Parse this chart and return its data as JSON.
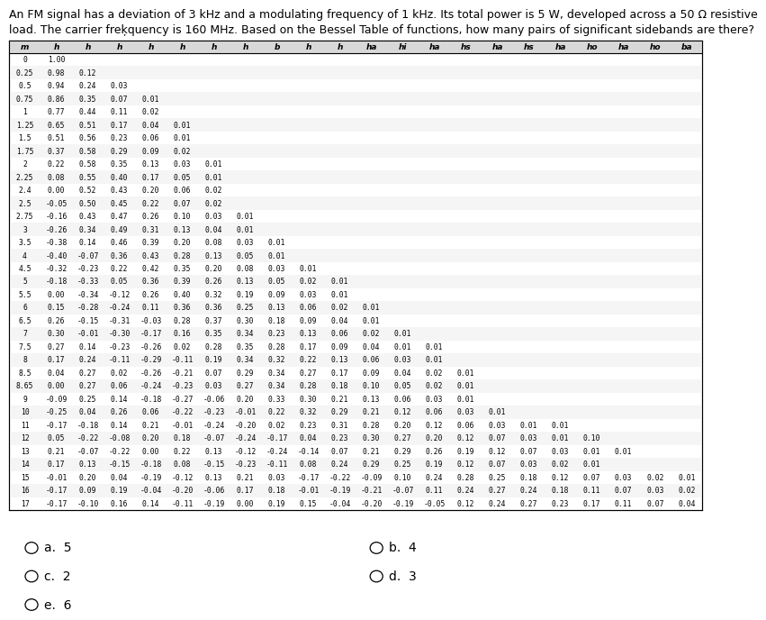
{
  "question_line1": "An FM signal has a deviation of 3 kHz and a modulating frequency of 1 kHz. Its total power is 5 W, developed across a 50 Ω resistive",
  "question_line2": "load. The carrier freķquency is 160 MHz. Based on the Bessel Table of functions, how many pairs of significant sidebands are there?",
  "col_headers": [
    "m",
    "h",
    "h",
    "h",
    "h",
    "h",
    "h",
    "h",
    "b",
    "h",
    "h",
    "ha",
    "hi",
    "ha",
    "hs",
    "ha",
    "hs",
    "ha",
    "ho",
    "ha",
    "ho",
    "ba"
  ],
  "rows": [
    [
      "0",
      "1.00"
    ],
    [
      "0.25",
      "0.98",
      "0.12"
    ],
    [
      "0.5",
      "0.94",
      "0.24",
      "0.03"
    ],
    [
      "0.75",
      "0.86",
      "0.35",
      "0.07",
      "0.01"
    ],
    [
      "1",
      "0.77",
      "0.44",
      "0.11",
      "0.02"
    ],
    [
      "1.25",
      "0.65",
      "0.51",
      "0.17",
      "0.04",
      "0.01"
    ],
    [
      "1.5",
      "0.51",
      "0.56",
      "0.23",
      "0.06",
      "0.01"
    ],
    [
      "1.75",
      "0.37",
      "0.58",
      "0.29",
      "0.09",
      "0.02"
    ],
    [
      "2",
      "0.22",
      "0.58",
      "0.35",
      "0.13",
      "0.03",
      "0.01"
    ],
    [
      "2.25",
      "0.08",
      "0.55",
      "0.40",
      "0.17",
      "0.05",
      "0.01"
    ],
    [
      "2.4",
      "0.00",
      "0.52",
      "0.43",
      "0.20",
      "0.06",
      "0.02"
    ],
    [
      "2.5",
      "-0.05",
      "0.50",
      "0.45",
      "0.22",
      "0.07",
      "0.02"
    ],
    [
      "2.75",
      "-0.16",
      "0.43",
      "0.47",
      "0.26",
      "0.10",
      "0.03",
      "0.01"
    ],
    [
      "3",
      "-0.26",
      "0.34",
      "0.49",
      "0.31",
      "0.13",
      "0.04",
      "0.01"
    ],
    [
      "3.5",
      "-0.38",
      "0.14",
      "0.46",
      "0.39",
      "0.20",
      "0.08",
      "0.03",
      "0.01"
    ],
    [
      "4",
      "-0.40",
      "-0.07",
      "0.36",
      "0.43",
      "0.28",
      "0.13",
      "0.05",
      "0.01"
    ],
    [
      "4.5",
      "-0.32",
      "-0.23",
      "0.22",
      "0.42",
      "0.35",
      "0.20",
      "0.08",
      "0.03",
      "0.01"
    ],
    [
      "5",
      "-0.18",
      "-0.33",
      "0.05",
      "0.36",
      "0.39",
      "0.26",
      "0.13",
      "0.05",
      "0.02",
      "0.01"
    ],
    [
      "5.5",
      "0.00",
      "-0.34",
      "-0.12",
      "0.26",
      "0.40",
      "0.32",
      "0.19",
      "0.09",
      "0.03",
      "0.01"
    ],
    [
      "6",
      "0.15",
      "-0.28",
      "-0.24",
      "0.11",
      "0.36",
      "0.36",
      "0.25",
      "0.13",
      "0.06",
      "0.02",
      "0.01"
    ],
    [
      "6.5",
      "0.26",
      "-0.15",
      "-0.31",
      "-0.03",
      "0.28",
      "0.37",
      "0.30",
      "0.18",
      "0.09",
      "0.04",
      "0.01"
    ],
    [
      "7",
      "0.30",
      "-0.01",
      "-0.30",
      "-0.17",
      "0.16",
      "0.35",
      "0.34",
      "0.23",
      "0.13",
      "0.06",
      "0.02",
      "0.01"
    ],
    [
      "7.5",
      "0.27",
      "0.14",
      "-0.23",
      "-0.26",
      "0.02",
      "0.28",
      "0.35",
      "0.28",
      "0.17",
      "0.09",
      "0.04",
      "0.01",
      "0.01"
    ],
    [
      "8",
      "0.17",
      "0.24",
      "-0.11",
      "-0.29",
      "-0.11",
      "0.19",
      "0.34",
      "0.32",
      "0.22",
      "0.13",
      "0.06",
      "0.03",
      "0.01"
    ],
    [
      "8.5",
      "0.04",
      "0.27",
      "0.02",
      "-0.26",
      "-0.21",
      "0.07",
      "0.29",
      "0.34",
      "0.27",
      "0.17",
      "0.09",
      "0.04",
      "0.02",
      "0.01"
    ],
    [
      "8.65",
      "0.00",
      "0.27",
      "0.06",
      "-0.24",
      "-0.23",
      "0.03",
      "0.27",
      "0.34",
      "0.28",
      "0.18",
      "0.10",
      "0.05",
      "0.02",
      "0.01"
    ],
    [
      "9",
      "-0.09",
      "0.25",
      "0.14",
      "-0.18",
      "-0.27",
      "-0.06",
      "0.20",
      "0.33",
      "0.30",
      "0.21",
      "0.13",
      "0.06",
      "0.03",
      "0.01"
    ],
    [
      "10",
      "-0.25",
      "0.04",
      "0.26",
      "0.06",
      "-0.22",
      "-0.23",
      "-0.01",
      "0.22",
      "0.32",
      "0.29",
      "0.21",
      "0.12",
      "0.06",
      "0.03",
      "0.01"
    ],
    [
      "11",
      "-0.17",
      "-0.18",
      "0.14",
      "0.21",
      "-0.01",
      "-0.24",
      "-0.20",
      "0.02",
      "0.23",
      "0.31",
      "0.28",
      "0.20",
      "0.12",
      "0.06",
      "0.03",
      "0.01",
      "0.01"
    ],
    [
      "12",
      "0.05",
      "-0.22",
      "-0.08",
      "0.20",
      "0.18",
      "-0.07",
      "-0.24",
      "-0.17",
      "0.04",
      "0.23",
      "0.30",
      "0.27",
      "0.20",
      "0.12",
      "0.07",
      "0.03",
      "0.01",
      "0.10"
    ],
    [
      "13",
      "0.21",
      "-0.07",
      "-0.22",
      "0.00",
      "0.22",
      "0.13",
      "-0.12",
      "-0.24",
      "-0.14",
      "0.07",
      "0.21",
      "0.29",
      "0.26",
      "0.19",
      "0.12",
      "0.07",
      "0.03",
      "0.01",
      "0.01"
    ],
    [
      "14",
      "0.17",
      "0.13",
      "-0.15",
      "-0.18",
      "0.08",
      "-0.15",
      "-0.23",
      "-0.11",
      "0.08",
      "0.24",
      "0.29",
      "0.25",
      "0.19",
      "0.12",
      "0.07",
      "0.03",
      "0.02",
      "0.01"
    ],
    [
      "15",
      "-0.01",
      "0.20",
      "0.04",
      "-0.19",
      "-0.12",
      "0.13",
      "0.21",
      "0.03",
      "-0.17",
      "-0.22",
      "-0.09",
      "0.10",
      "0.24",
      "0.28",
      "0.25",
      "0.18",
      "0.12",
      "0.07",
      "0.03",
      "0.02",
      "0.01"
    ],
    [
      "16",
      "-0.17",
      "0.09",
      "0.19",
      "-0.04",
      "-0.20",
      "-0.06",
      "0.17",
      "0.18",
      "-0.01",
      "-0.19",
      "-0.21",
      "-0.07",
      "0.11",
      "0.24",
      "0.27",
      "0.24",
      "0.18",
      "0.11",
      "0.07",
      "0.03",
      "0.02"
    ],
    [
      "17",
      "-0.17",
      "-0.10",
      "0.16",
      "0.14",
      "-0.11",
      "-0.19",
      "0.00",
      "0.19",
      "0.15",
      "-0.04",
      "-0.20",
      "-0.19",
      "-0.05",
      "0.12",
      "0.24",
      "0.27",
      "0.23",
      "0.17",
      "0.11",
      "0.07",
      "0.04"
    ]
  ],
  "choices": [
    {
      "label": "a.",
      "value": "5",
      "col": 0,
      "row": 0
    },
    {
      "label": "b.",
      "value": "4",
      "col": 1,
      "row": 0
    },
    {
      "label": "c.",
      "value": "2",
      "col": 0,
      "row": 1
    },
    {
      "label": "d.",
      "value": "3",
      "col": 1,
      "row": 1
    },
    {
      "label": "e.",
      "value": "6",
      "col": 0,
      "row": 2
    }
  ],
  "bg_color": "#ffffff",
  "text_color": "#000000",
  "table_font_size": 5.8,
  "header_font_size": 6.5,
  "question_font_size": 9.0
}
